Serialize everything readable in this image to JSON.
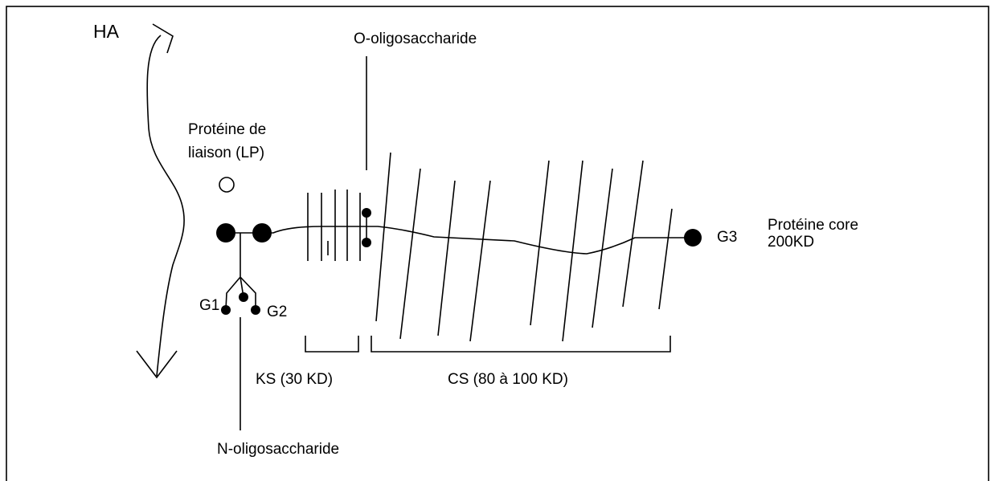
{
  "labels": {
    "ha": "HA",
    "o_oligo": "O-oligosaccharide",
    "lp_line1": "Protéine de",
    "lp_line2": "liaison (LP)",
    "g1": "G1",
    "g2": "G2",
    "g3": "G3",
    "core_line1": "Protéine core",
    "core_line2": "200KD",
    "ks": "KS (30 KD)",
    "cs": "CS (80 à 100 KD)",
    "n_oligo": "N-oligosaccharide"
  }
}
